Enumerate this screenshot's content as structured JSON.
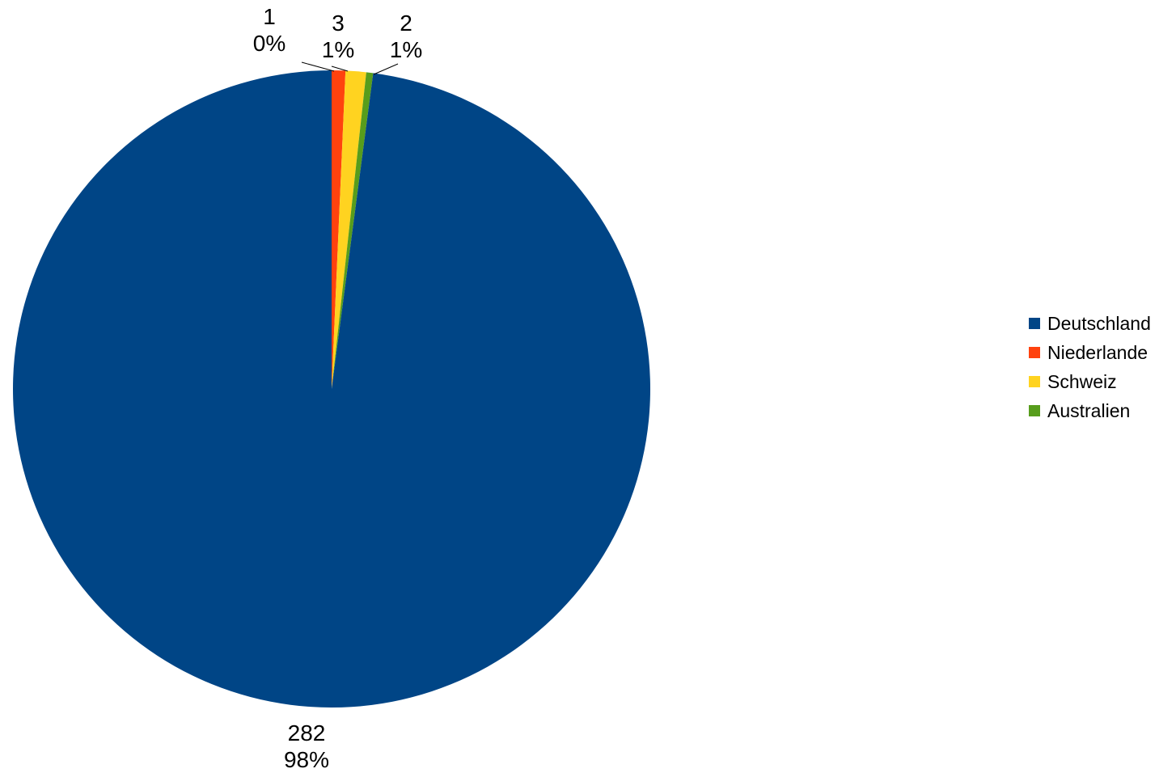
{
  "chart_data": {
    "type": "pie",
    "title": "",
    "categories": [
      "Deutschland",
      "Niederlande",
      "Schweiz",
      "Australien"
    ],
    "values": [
      282,
      2,
      3,
      1
    ],
    "percent_labels": [
      "98%",
      "1%",
      "1%",
      "0%"
    ],
    "value_labels": [
      "282",
      "2",
      "3",
      "1"
    ],
    "colors": [
      "#004586",
      "#FF420E",
      "#FFD320",
      "#579D1C"
    ],
    "legend_placement": "right",
    "start_angle_deg": 0,
    "direction": "clockwise",
    "slice_order": [
      1,
      2,
      3,
      0
    ]
  }
}
